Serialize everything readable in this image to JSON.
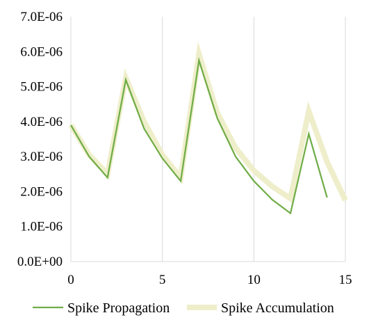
{
  "chart_data": {
    "type": "line",
    "title": "",
    "xlabel": "",
    "ylabel": "",
    "xlim": [
      0,
      15
    ],
    "ylim": [
      0,
      7e-06
    ],
    "grid": {
      "vertical": true,
      "horizontal": false
    },
    "legend_position": "bottom",
    "x_ticks": [
      {
        "value": 0,
        "label": "0"
      },
      {
        "value": 5,
        "label": "5"
      },
      {
        "value": 10,
        "label": "10"
      },
      {
        "value": 15,
        "label": "15"
      }
    ],
    "y_ticks": [
      {
        "value": 0,
        "label": "0.0E+00"
      },
      {
        "value": 1e-06,
        "label": "1.0E-06"
      },
      {
        "value": 2e-06,
        "label": "2.0E-06"
      },
      {
        "value": 3e-06,
        "label": "3.0E-06"
      },
      {
        "value": 4e-06,
        "label": "4.0E-06"
      },
      {
        "value": 5e-06,
        "label": "5.0E-06"
      },
      {
        "value": 6e-06,
        "label": "6.0E-06"
      },
      {
        "value": 7e-06,
        "label": "7.0E-06"
      }
    ],
    "series": [
      {
        "key": "spike-accumulation",
        "name": "Spike Accumulation",
        "color": "#EFEECB",
        "x": [
          0,
          1,
          2,
          3,
          4,
          5,
          6,
          7,
          8,
          9,
          10,
          11,
          12,
          13,
          14,
          15
        ],
        "values": [
          3.9e-06,
          3.05e-06,
          2.5e-06,
          5.25e-06,
          4e-06,
          3.05e-06,
          2.4e-06,
          5.93e-06,
          4.25e-06,
          3.25e-06,
          2.6e-06,
          2.15e-06,
          1.8e-06,
          4.3e-06,
          2.85e-06,
          1.75e-06
        ]
      },
      {
        "key": "spike-propagation",
        "name": "Spike Propagation",
        "color": "#70AD47",
        "x": [
          0,
          1,
          2,
          3,
          4,
          5,
          6,
          7,
          8,
          9,
          10,
          11,
          12,
          13,
          14
        ],
        "values": [
          3.9e-06,
          3e-06,
          2.4e-06,
          5.2e-06,
          3.8e-06,
          2.95e-06,
          2.3e-06,
          5.75e-06,
          4.1e-06,
          3e-06,
          2.3e-06,
          1.77e-06,
          1.38e-06,
          3.65e-06,
          1.83e-06
        ]
      }
    ]
  }
}
